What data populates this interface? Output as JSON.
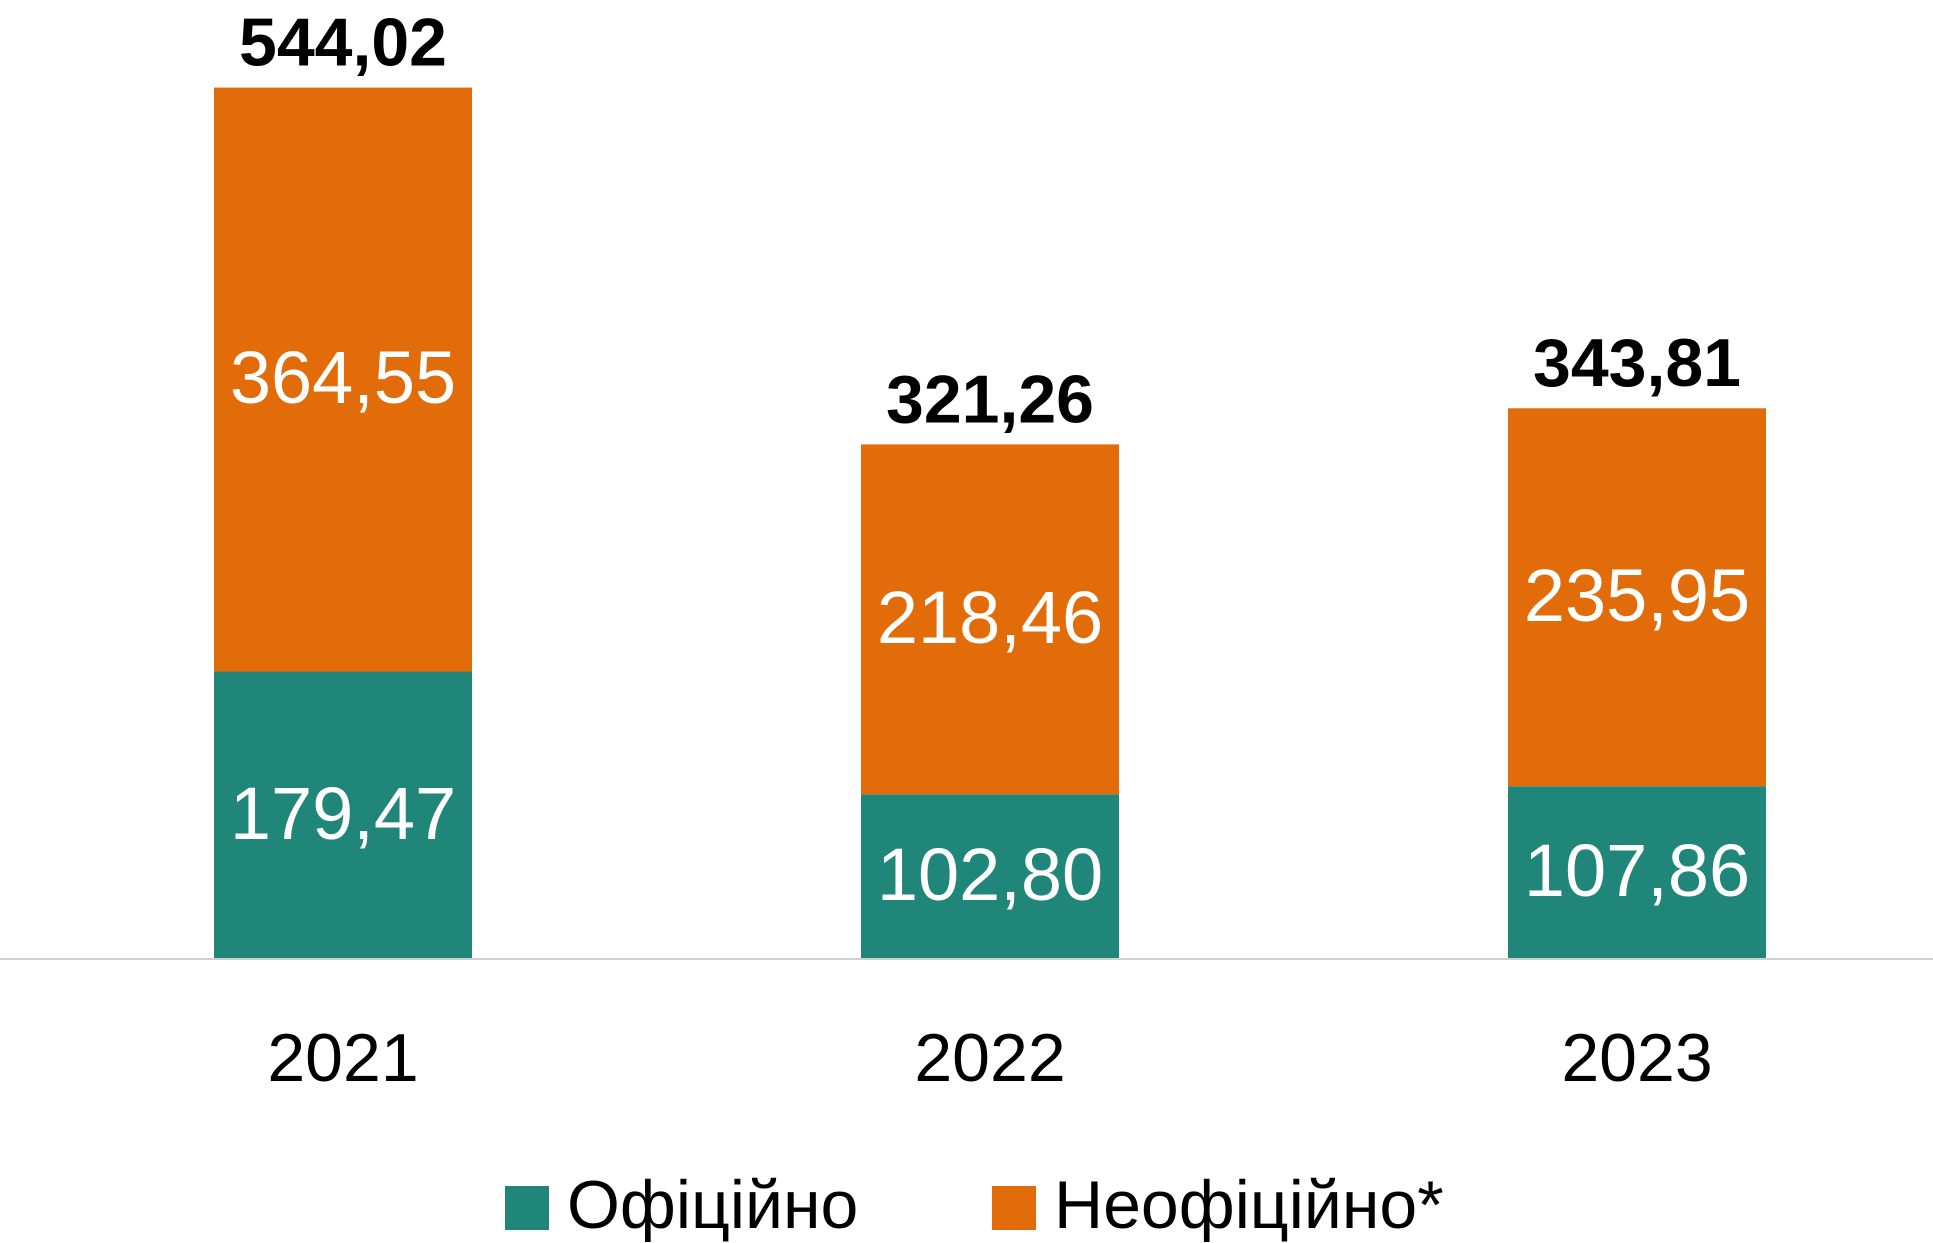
{
  "chart_data": {
    "type": "stacked_bar",
    "categories": [
      "2021",
      "2022",
      "2023"
    ],
    "series": [
      {
        "name": "Офіційно",
        "color": "#21867a",
        "values": [
          179.47,
          102.8,
          107.86
        ],
        "value_labels": [
          "179,47",
          "102,80",
          "107,86"
        ]
      },
      {
        "name": "Неофіційно*",
        "color": "#e36c0a",
        "values": [
          364.55,
          218.46,
          235.95
        ],
        "value_labels": [
          "364,55",
          "218,46",
          "235,95"
        ]
      }
    ],
    "totals": [
      544.02,
      321.26,
      343.81
    ],
    "total_labels": [
      "544,02",
      "321,26",
      "343,81"
    ],
    "ylim": [
      0,
      550
    ],
    "legend": "bottom"
  }
}
